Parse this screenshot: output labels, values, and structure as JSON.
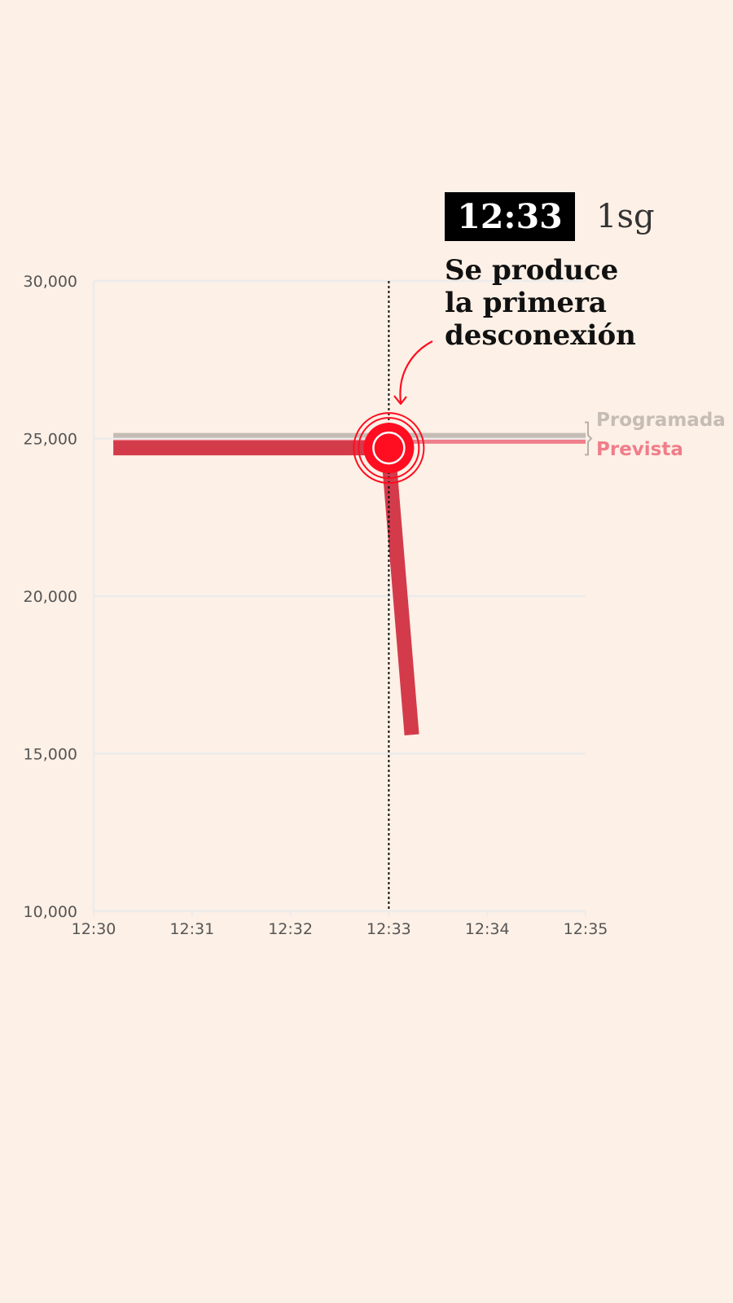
{
  "annotation": {
    "time": "12:33",
    "elapsed": "1sg",
    "headline": [
      "Se produce",
      "la primera",
      "desconexión"
    ]
  },
  "colors": {
    "background": "#fdf0e6",
    "grid": "#ecebeb",
    "programada": "#c5bcb6",
    "prevista": "#f07d8a",
    "real": "#d33b4b",
    "marker": "#ff0d20",
    "callout": "#ff0d20"
  },
  "chart_data": {
    "type": "line",
    "title": "",
    "xlabel": "",
    "ylabel": "",
    "x_ticks": [
      "12:30",
      "12:31",
      "12:32",
      "12:33",
      "12:34",
      "12:35"
    ],
    "y_ticks": [
      30000,
      25000,
      20000,
      15000,
      10000
    ],
    "y_tick_labels": [
      "30,000",
      "25,000",
      "20,000",
      "15,000",
      "10,000"
    ],
    "xlim": [
      "12:30:00",
      "12:35:00"
    ],
    "ylim": [
      10000,
      30000
    ],
    "grid": true,
    "event_time": "12:33:00",
    "series": [
      {
        "name": "Programada",
        "points": [
          [
            "12:30:12",
            25100
          ],
          [
            "12:35:00",
            25100
          ]
        ]
      },
      {
        "name": "Prevista",
        "points": [
          [
            "12:30:12",
            24900
          ],
          [
            "12:35:00",
            24900
          ]
        ]
      },
      {
        "points": [
          [
            "12:30:12",
            24700
          ],
          [
            "12:32:58",
            24700
          ],
          [
            "12:33:00",
            24400
          ],
          [
            "12:33:14",
            15600
          ]
        ]
      }
    ],
    "event_marker": {
      "x": "12:33:00",
      "y": 24700
    }
  }
}
